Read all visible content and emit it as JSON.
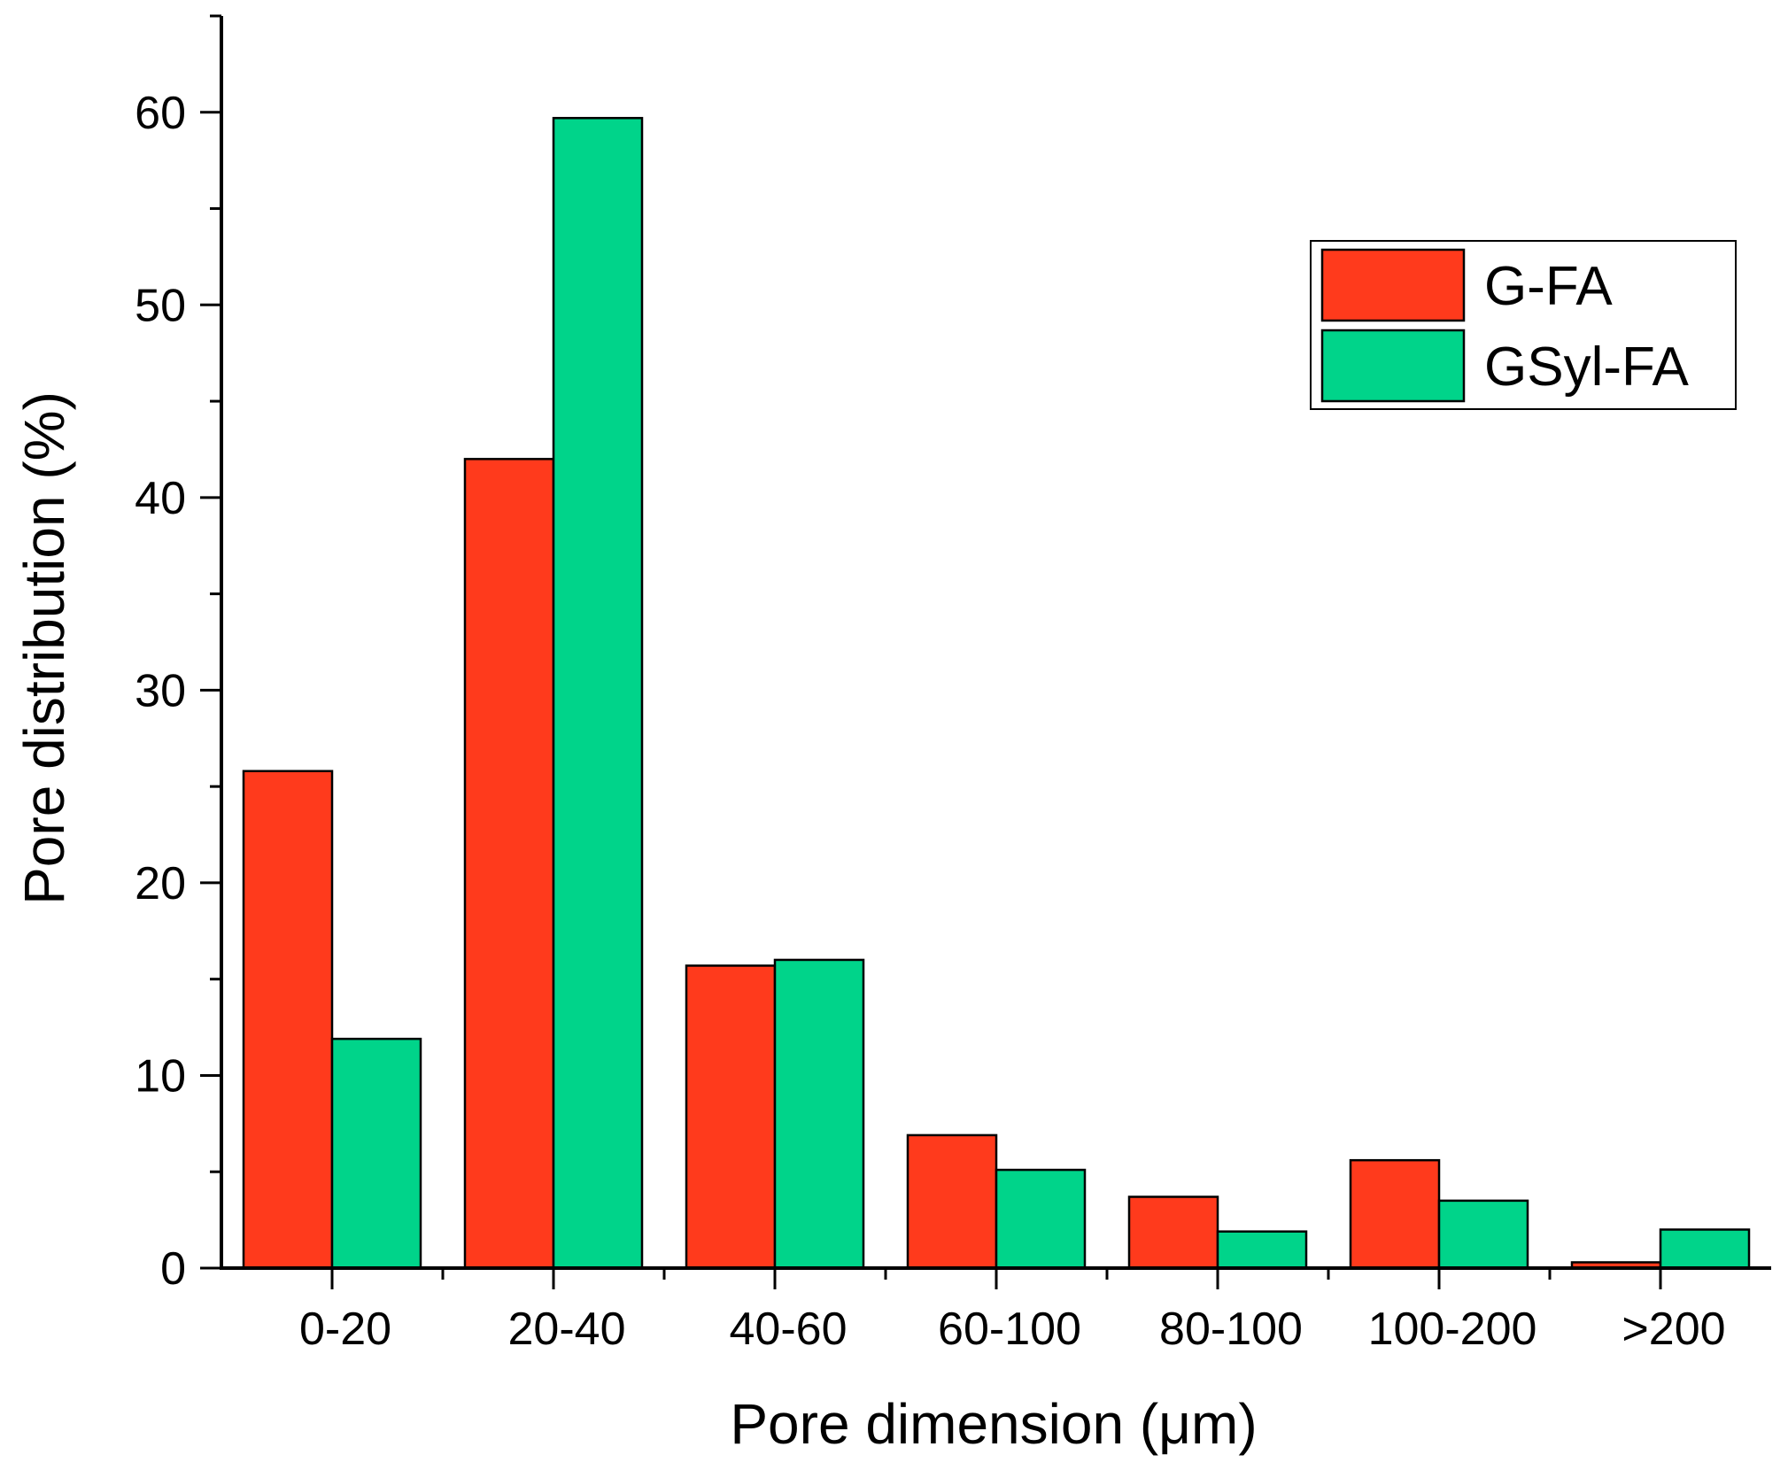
{
  "chart_data": {
    "type": "bar",
    "categories": [
      "0-20",
      "20-40",
      "40-60",
      "60-100",
      "80-100",
      "100-200",
      ">200"
    ],
    "series": [
      {
        "name": "G-FA",
        "color": "#ff3a1c",
        "values": [
          25.8,
          42.0,
          15.7,
          6.9,
          3.7,
          5.6,
          0.3
        ]
      },
      {
        "name": "GSyl-FA",
        "color": "#00d48a",
        "values": [
          11.9,
          59.7,
          16.0,
          5.1,
          1.9,
          3.5,
          2.0
        ]
      }
    ],
    "xlabel": "Pore dimension (μm)",
    "ylabel": "Pore distribution (%)",
    "ylim": [
      0,
      65
    ],
    "yticks": [
      0,
      10,
      20,
      30,
      40,
      50,
      60
    ],
    "grid": false,
    "legend_position": "top-right"
  }
}
